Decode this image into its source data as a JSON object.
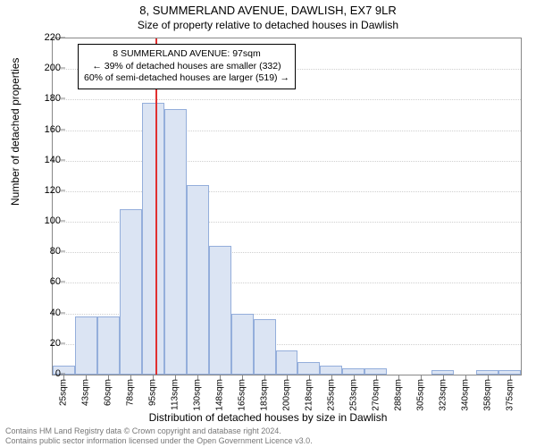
{
  "title": "8, SUMMERLAND AVENUE, DAWLISH, EX7 9LR",
  "subtitle": "Size of property relative to detached houses in Dawlish",
  "y_axis": {
    "label": "Number of detached properties",
    "ticks": [
      0,
      20,
      40,
      60,
      80,
      100,
      120,
      140,
      160,
      180,
      200,
      220
    ],
    "max": 220,
    "label_fontsize": 12,
    "tick_fontsize": 11
  },
  "x_axis": {
    "label": "Distribution of detached houses by size in Dawlish",
    "categories": [
      "25sqm",
      "43sqm",
      "60sqm",
      "78sqm",
      "95sqm",
      "113sqm",
      "130sqm",
      "148sqm",
      "165sqm",
      "183sqm",
      "200sqm",
      "218sqm",
      "235sqm",
      "253sqm",
      "270sqm",
      "288sqm",
      "305sqm",
      "323sqm",
      "340sqm",
      "358sqm",
      "375sqm"
    ],
    "label_fontsize": 12,
    "tick_fontsize": 10
  },
  "chart": {
    "type": "histogram",
    "values": [
      6,
      38,
      38,
      108,
      178,
      174,
      124,
      84,
      40,
      36,
      16,
      8,
      6,
      4,
      4,
      0,
      0,
      3,
      0,
      3,
      3
    ],
    "bar_fill": "#dbe4f3",
    "bar_stroke": "#94aedb",
    "grid_color": "#cfcfcf",
    "axis_color": "#888888",
    "background": "#ffffff",
    "marker_value_sqm": 97,
    "marker_color": "#e03030",
    "x_min_sqm": 25,
    "x_max_sqm": 375
  },
  "callout": {
    "line1": "8 SUMMERLAND AVENUE: 97sqm",
    "line2": "← 39% of detached houses are smaller (332)",
    "line3": "60% of semi-detached houses are larger (519) →"
  },
  "footnote": {
    "line1": "Contains HM Land Registry data © Crown copyright and database right 2024.",
    "line2": "Contains public sector information licensed under the Open Government Licence v3.0."
  }
}
